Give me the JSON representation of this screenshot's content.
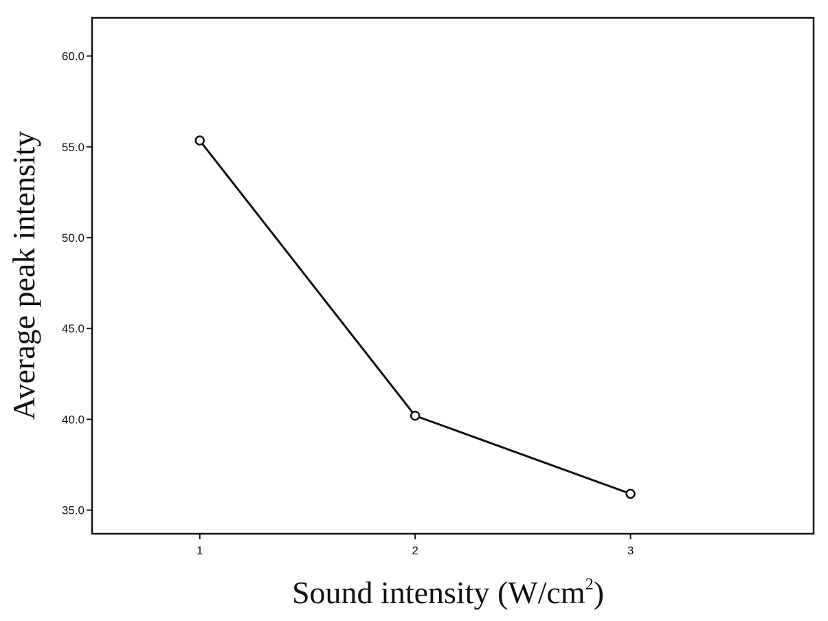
{
  "chart_data": {
    "type": "line",
    "xlabel": "Sound intensity (W/cm2)",
    "xlabel_main": "Sound intensity (W/cm",
    "xlabel_sup": "2",
    "xlabel_close": ")",
    "ylabel": "Average peak intensity",
    "x": [
      1,
      2,
      3
    ],
    "x_tick_labels": [
      "1",
      "2",
      "3"
    ],
    "xlim": [
      0.5,
      3.85
    ],
    "y_ticks": [
      35,
      40,
      45,
      50,
      55,
      60
    ],
    "y_tick_labels": [
      "35.0",
      "40.0",
      "45.0",
      "50.0",
      "55.0",
      "60.0"
    ],
    "ylim": [
      33.7,
      62.1
    ],
    "series": [
      {
        "values": [
          55.35,
          40.2,
          35.9
        ],
        "color": "#111111",
        "marker": "open-circle"
      }
    ],
    "grid": false,
    "legend": "none"
  }
}
